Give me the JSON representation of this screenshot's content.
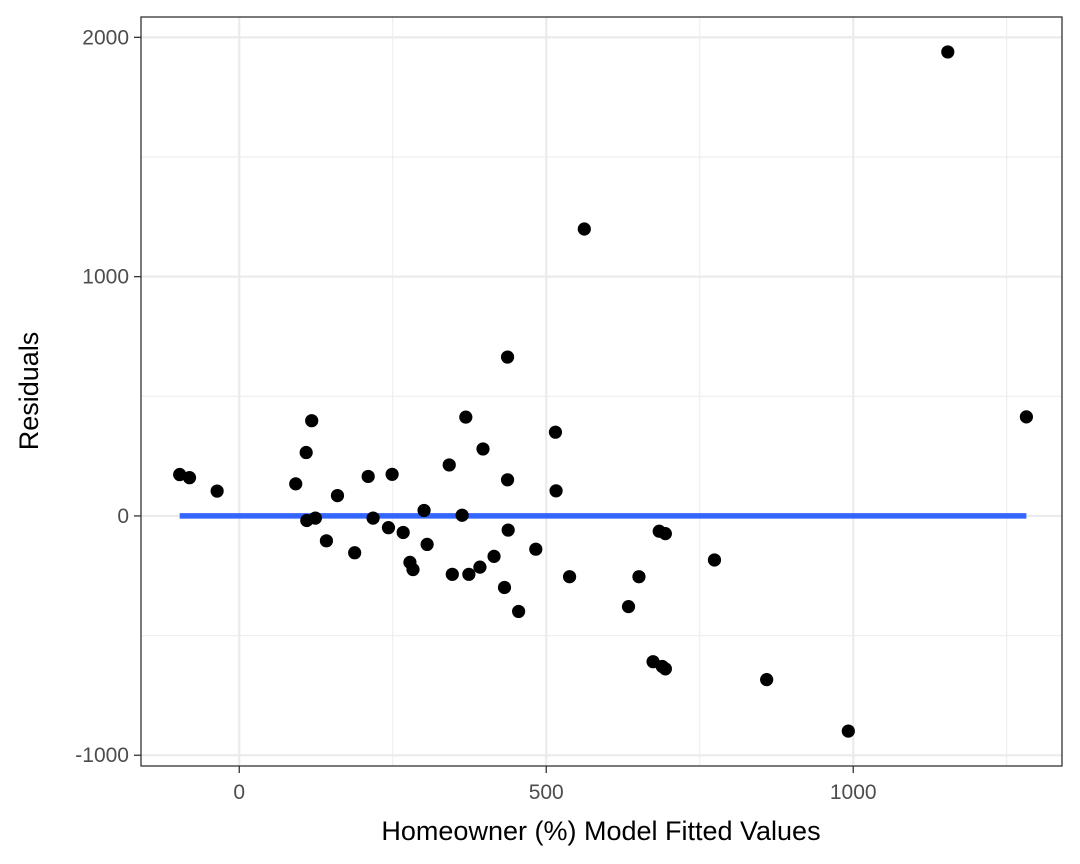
{
  "chart_data": {
    "type": "scatter",
    "title": "",
    "xlabel": "Homeowner (%) Model Fitted Values",
    "ylabel": "Residuals",
    "xlim": [
      -160,
      1340
    ],
    "ylim": [
      -1045,
      2085
    ],
    "x_ticks": [
      {
        "value": 0,
        "label": "0"
      },
      {
        "value": 500,
        "label": "500"
      },
      {
        "value": 1000,
        "label": "1000"
      }
    ],
    "y_ticks": [
      {
        "value": -1000,
        "label": "-1000"
      },
      {
        "value": 0,
        "label": "0"
      },
      {
        "value": 1000,
        "label": "1000"
      },
      {
        "value": 2000,
        "label": "2000"
      }
    ],
    "x_minor_grid": [
      -250,
      250,
      750,
      1250
    ],
    "y_minor_grid": [
      -500,
      500,
      1500
    ],
    "grid": true,
    "point_color": "#000000",
    "line_color": "#3366FF",
    "panel_border_color": "#333333",
    "grid_color": "#ebebeb",
    "fit_line": {
      "x": [
        -97,
        1282
      ],
      "y": [
        0,
        0
      ]
    },
    "points": [
      {
        "x": -97,
        "y": 173
      },
      {
        "x": -81,
        "y": 160
      },
      {
        "x": -36,
        "y": 104
      },
      {
        "x": 92,
        "y": 134
      },
      {
        "x": 109,
        "y": 265
      },
      {
        "x": 110,
        "y": -19
      },
      {
        "x": 118,
        "y": 398
      },
      {
        "x": 124,
        "y": -9
      },
      {
        "x": 142,
        "y": -104
      },
      {
        "x": 160,
        "y": 85
      },
      {
        "x": 188,
        "y": -154
      },
      {
        "x": 210,
        "y": 165
      },
      {
        "x": 218,
        "y": -9
      },
      {
        "x": 243,
        "y": -49
      },
      {
        "x": 249,
        "y": 174
      },
      {
        "x": 267,
        "y": -69
      },
      {
        "x": 278,
        "y": -194
      },
      {
        "x": 283,
        "y": -224
      },
      {
        "x": 301,
        "y": 23
      },
      {
        "x": 306,
        "y": -119
      },
      {
        "x": 342,
        "y": 213
      },
      {
        "x": 347,
        "y": -244
      },
      {
        "x": 363,
        "y": 3
      },
      {
        "x": 369,
        "y": 413
      },
      {
        "x": 374,
        "y": -244
      },
      {
        "x": 392,
        "y": -214
      },
      {
        "x": 397,
        "y": 280
      },
      {
        "x": 415,
        "y": -169
      },
      {
        "x": 432,
        "y": -299
      },
      {
        "x": 437,
        "y": 151
      },
      {
        "x": 437,
        "y": 664
      },
      {
        "x": 438,
        "y": -59
      },
      {
        "x": 455,
        "y": -399
      },
      {
        "x": 483,
        "y": -139
      },
      {
        "x": 515,
        "y": 350
      },
      {
        "x": 516,
        "y": 105
      },
      {
        "x": 538,
        "y": -254
      },
      {
        "x": 562,
        "y": 1199
      },
      {
        "x": 634,
        "y": -379
      },
      {
        "x": 651,
        "y": -254
      },
      {
        "x": 674,
        "y": -609
      },
      {
        "x": 684,
        "y": -64
      },
      {
        "x": 689,
        "y": -629
      },
      {
        "x": 694,
        "y": -639
      },
      {
        "x": 694,
        "y": -74
      },
      {
        "x": 774,
        "y": -184
      },
      {
        "x": 859,
        "y": -684
      },
      {
        "x": 992,
        "y": -899
      },
      {
        "x": 1154,
        "y": 1939
      },
      {
        "x": 1282,
        "y": 414
      }
    ]
  }
}
